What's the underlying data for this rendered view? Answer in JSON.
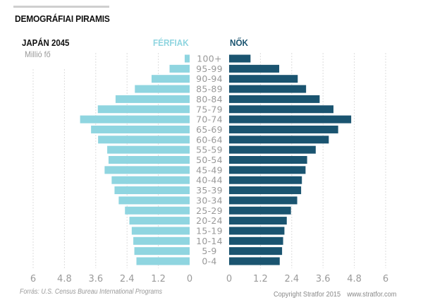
{
  "header": {
    "title": "DEMOGRÁFIAI PIRAMIS",
    "subtitle": "JAPÁN 2045",
    "unit": "Millió fő"
  },
  "footer": {
    "source": "Forrás: U.S. Census Bureau International Programs",
    "copyright": "Copyright Stratfor 2015",
    "website": "www.stratfor.com"
  },
  "colors": {
    "male": "#8fd5e0",
    "female": "#1a5470",
    "tick_text": "#9a9a9a",
    "grid": "#dddddd"
  },
  "chart_data": {
    "type": "bar",
    "orientation": "horizontal",
    "layout": "population-pyramid",
    "title": "DEMOGRÁFIAI PIRAMIS",
    "subtitle": "JAPÁN 2045",
    "unit": "Millió fő",
    "categories": [
      "100+",
      "95-99",
      "90-94",
      "85-89",
      "80-84",
      "75-79",
      "70-74",
      "65-69",
      "60-64",
      "55-59",
      "50-54",
      "45-49",
      "40-44",
      "35-39",
      "30-34",
      "25-29",
      "20-24",
      "15-19",
      "10-14",
      "5-9",
      "0-4"
    ],
    "series": [
      {
        "name": "FÉRFIAK",
        "side": "left",
        "values": [
          0.19,
          0.77,
          1.46,
          2.1,
          2.84,
          3.52,
          4.2,
          3.78,
          3.51,
          3.16,
          3.11,
          3.26,
          2.99,
          2.88,
          2.72,
          2.48,
          2.31,
          2.22,
          2.16,
          2.12,
          2.04
        ]
      },
      {
        "name": "NŐK",
        "side": "right",
        "values": [
          0.82,
          1.92,
          2.63,
          2.95,
          3.47,
          4.0,
          4.68,
          4.18,
          3.82,
          3.32,
          2.99,
          2.93,
          2.79,
          2.76,
          2.61,
          2.37,
          2.21,
          2.12,
          2.07,
          2.03,
          1.94
        ]
      }
    ],
    "xlim": [
      0,
      6
    ],
    "left_ticks": [
      "6",
      "4.8",
      "3.6",
      "2.4",
      "1.2",
      "0"
    ],
    "right_ticks": [
      "0",
      "1.2",
      "2.4",
      "3.6",
      "4.8",
      "6"
    ],
    "tick_values": [
      0,
      1.2,
      2.4,
      3.6,
      4.8,
      6
    ],
    "grid": true,
    "legend": [
      "FÉRFIAK",
      "NŐK"
    ],
    "legend_placement": "top"
  }
}
